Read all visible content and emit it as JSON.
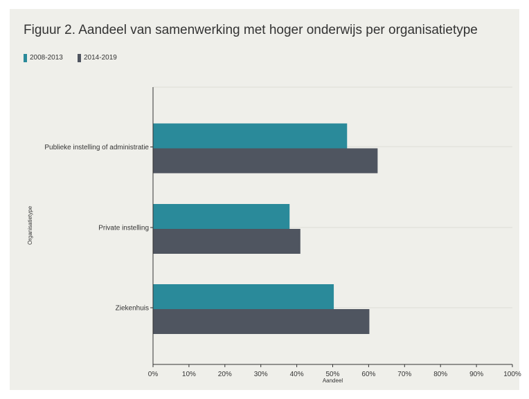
{
  "page": {
    "title": "Figuur 2. Aandeel van samenwerking met hoger onderwijs per organisatietype"
  },
  "chart_data": {
    "type": "bar",
    "orientation": "horizontal",
    "title": "Figuur 2. Aandeel van samenwerking met hoger onderwijs per organisatietype",
    "categories": [
      "Publieke instelling of administratie",
      "Private instelling",
      "Ziekenhuis"
    ],
    "series": [
      {
        "name": "2008-2013",
        "color": "#2a8a9a",
        "values": [
          54,
          38,
          50.3
        ]
      },
      {
        "name": "2014-2019",
        "color": "#4f5560",
        "values": [
          62.5,
          41,
          60.2
        ]
      }
    ],
    "xlabel": "Aandeel",
    "ylabel": "Organisatietype",
    "xlim": [
      0,
      100
    ],
    "x_ticks": [
      "0%",
      "10%",
      "20%",
      "30%",
      "40%",
      "50%",
      "60%",
      "70%",
      "80%",
      "90%",
      "100%"
    ],
    "grid": true,
    "legend_position": "top-left"
  }
}
